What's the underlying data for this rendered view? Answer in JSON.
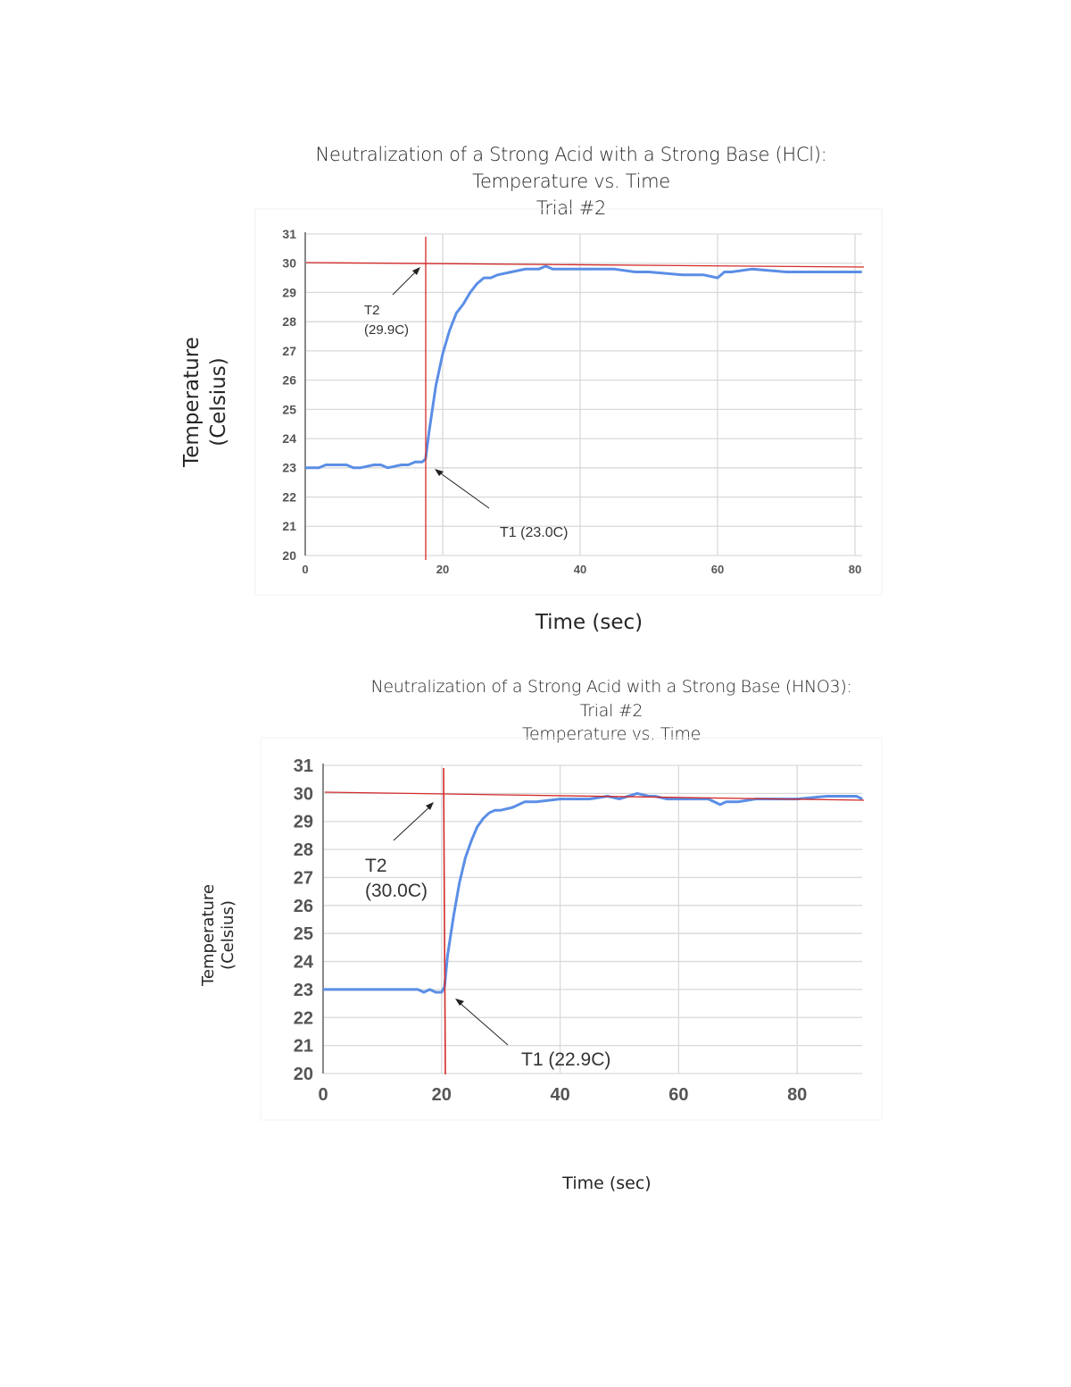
{
  "charts": [
    {
      "title_lines": [
        "Neutralization of a Strong Acid with a Strong Base (HCl):",
        "Temperature vs. Time",
        "Trial #2"
      ],
      "ylabel_lines": [
        "Temperature",
        "(Celsius)"
      ],
      "xlabel": "Time (sec)",
      "annotations": {
        "t2_label": "T2",
        "t2_value": "(29.9C)",
        "t1_label": "T1 (23.0C)"
      }
    },
    {
      "title_lines": [
        "Neutralization of a Strong Acid with a Strong Base (HNO3):",
        "Trial #2",
        "Temperature vs. Time"
      ],
      "ylabel_lines": [
        "Temperature",
        "(Celsius)"
      ],
      "xlabel": "Time (sec)",
      "annotations": {
        "t2_label": "T2",
        "t2_value": "(30.0C)",
        "t1_label": "T1 (22.9C)"
      }
    }
  ],
  "colors": {
    "series": "#5b8ee6",
    "reference_lines": "#d42a2a",
    "grid": "#d9d9d9",
    "axis": "#888888"
  },
  "chart_data": [
    {
      "type": "line",
      "title": "Neutralization of a Strong Acid with a Strong Base (HCl): Temperature vs. Time Trial #2",
      "xlabel": "Time (sec)",
      "ylabel": "Temperature (Celsius)",
      "xlim": [
        0,
        81
      ],
      "ylim": [
        20,
        31
      ],
      "xticks": [
        0,
        20,
        40,
        60,
        80
      ],
      "yticks": [
        20,
        21,
        22,
        23,
        24,
        25,
        26,
        27,
        28,
        29,
        30,
        31
      ],
      "grid": true,
      "legend": "none",
      "series": [
        {
          "name": "Temperature",
          "x": [
            0,
            2,
            3,
            4,
            6,
            7,
            8,
            10,
            11,
            12,
            14,
            15,
            16,
            17,
            17.5,
            18,
            19,
            20,
            21,
            22,
            23,
            24,
            25,
            26,
            27,
            28,
            30,
            32,
            34,
            35,
            36,
            38,
            40,
            45,
            48,
            50,
            55,
            56,
            58,
            60,
            61,
            62,
            65,
            70,
            73,
            75,
            78,
            80,
            81
          ],
          "y": [
            23.0,
            23.0,
            23.1,
            23.1,
            23.1,
            23.0,
            23.0,
            23.1,
            23.1,
            23.0,
            23.1,
            23.1,
            23.2,
            23.2,
            23.3,
            24.2,
            25.8,
            26.9,
            27.7,
            28.3,
            28.6,
            29.0,
            29.3,
            29.5,
            29.5,
            29.6,
            29.7,
            29.8,
            29.8,
            29.9,
            29.8,
            29.8,
            29.8,
            29.8,
            29.7,
            29.7,
            29.6,
            29.6,
            29.6,
            29.5,
            29.7,
            29.7,
            29.8,
            29.7,
            29.7,
            29.7,
            29.7,
            29.7,
            29.7
          ]
        }
      ],
      "reference_lines": [
        {
          "orientation": "horizontal",
          "y_start": 30.0,
          "y_end": 29.8,
          "label": "T2 (29.9C)"
        },
        {
          "orientation": "vertical",
          "x": 17.5,
          "label": "T1 (23.0C)"
        }
      ]
    },
    {
      "type": "line",
      "title": "Neutralization of a Strong Acid with a Strong Base (HNO3): Trial #2 Temperature vs. Time",
      "xlabel": "Time (sec)",
      "ylabel": "Temperature (Celsius)",
      "xlim": [
        0,
        91
      ],
      "ylim": [
        20,
        31
      ],
      "xticks": [
        0,
        20,
        40,
        60,
        80
      ],
      "yticks": [
        20,
        21,
        22,
        23,
        24,
        25,
        26,
        27,
        28,
        29,
        30,
        31
      ],
      "grid": true,
      "legend": "none",
      "series": [
        {
          "name": "Temperature",
          "x": [
            0,
            5,
            10,
            16,
            17,
            18,
            19,
            20,
            20.5,
            21,
            22,
            23,
            24,
            25,
            26,
            27,
            28,
            29,
            30,
            32,
            34,
            36,
            40,
            45,
            48,
            50,
            53,
            55,
            56,
            58,
            60,
            65,
            67,
            68,
            70,
            73,
            75,
            80,
            85,
            90,
            91
          ],
          "y": [
            23.0,
            23.0,
            23.0,
            23.0,
            22.9,
            23.0,
            22.9,
            22.9,
            23.1,
            24.2,
            25.6,
            26.8,
            27.7,
            28.3,
            28.8,
            29.1,
            29.3,
            29.4,
            29.4,
            29.5,
            29.7,
            29.7,
            29.8,
            29.8,
            29.9,
            29.8,
            30.0,
            29.9,
            29.9,
            29.8,
            29.8,
            29.8,
            29.6,
            29.7,
            29.7,
            29.8,
            29.8,
            29.8,
            29.9,
            29.9,
            29.8
          ]
        }
      ],
      "reference_lines": [
        {
          "orientation": "horizontal",
          "y_start": 30.0,
          "y_end": 29.8,
          "label": "T2 (30.0C)"
        },
        {
          "orientation": "vertical",
          "x": 20.3,
          "label": "T1 (22.9C)"
        }
      ]
    }
  ]
}
